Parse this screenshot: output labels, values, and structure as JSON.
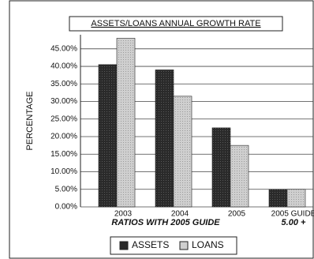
{
  "chart_data": {
    "type": "bar",
    "title": "ASSETS/LOANS ANNUAL GROWTH RATE",
    "y_label": "PERCENTAGE",
    "x_label": "RATIOS WITH 2005 GUIDE",
    "annotation": "5.00 +",
    "categories": [
      "2003",
      "2004",
      "2005",
      "2005 GUIDE"
    ],
    "series": [
      {
        "name": "ASSETS",
        "color": "#2a2a2a",
        "values": [
          40.5,
          39,
          22.5,
          5
        ]
      },
      {
        "name": "LOANS",
        "color": "#cfcfcf",
        "values": [
          48,
          31.5,
          17.5,
          5
        ]
      }
    ],
    "ylim": [
      0,
      49
    ],
    "yticks": [
      {
        "value": 0,
        "label": "0.00%"
      },
      {
        "value": 5,
        "label": "5.00%"
      },
      {
        "value": 10,
        "label": "10.00%"
      },
      {
        "value": 15,
        "label": "15.00%"
      },
      {
        "value": 20,
        "label": "20.00%"
      },
      {
        "value": 25,
        "label": "25.00%"
      },
      {
        "value": 30,
        "label": "30.00%"
      },
      {
        "value": 35,
        "label": "35.00%"
      },
      {
        "value": 40,
        "label": "40.00%"
      },
      {
        "value": 45,
        "label": "45.00%"
      }
    ],
    "grid": true,
    "legend": "bottom"
  }
}
